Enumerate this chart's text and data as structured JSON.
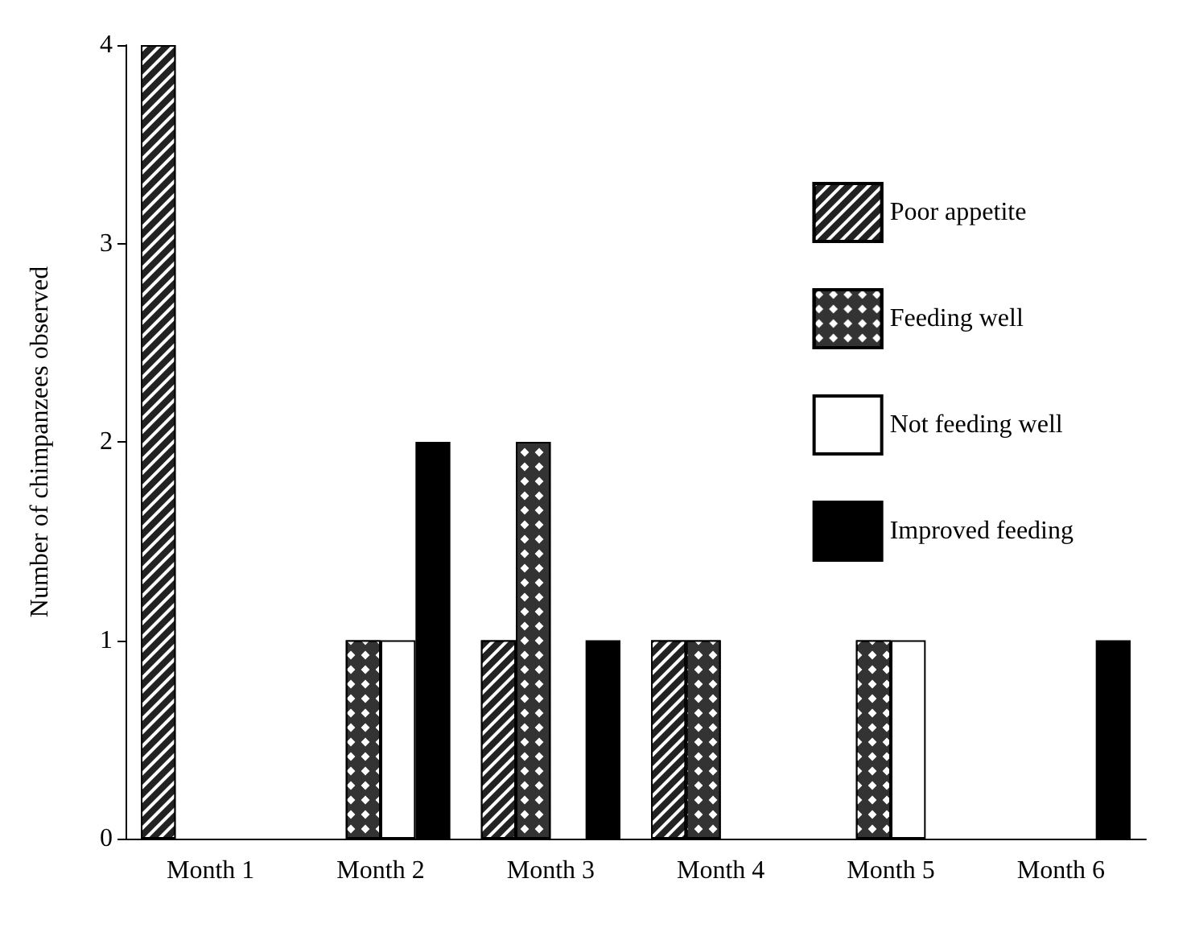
{
  "chart_data": {
    "type": "bar",
    "ylabel": "Number of chimpanzees observed",
    "categories": [
      "Month 1",
      "Month 2",
      "Month 3",
      "Month 4",
      "Month 5",
      "Month 6"
    ],
    "series": [
      {
        "name": "Poor appetite",
        "color": "#222222",
        "values": [
          4,
          null,
          1,
          1,
          null,
          null
        ]
      },
      {
        "name": "Feeding well",
        "color": "#333333",
        "values": [
          null,
          1,
          2,
          1,
          1,
          null
        ]
      },
      {
        "name": "Not feeding well",
        "color": "#ffffff",
        "values": [
          null,
          1,
          null,
          null,
          1,
          null
        ]
      },
      {
        "name": "Improved feeding",
        "color": "#000000",
        "values": [
          null,
          2,
          1,
          null,
          null,
          1
        ]
      }
    ],
    "ylim": [
      0,
      4
    ],
    "yticks": [
      0,
      1,
      2,
      3,
      4
    ],
    "grid": false,
    "legend": "top right"
  }
}
